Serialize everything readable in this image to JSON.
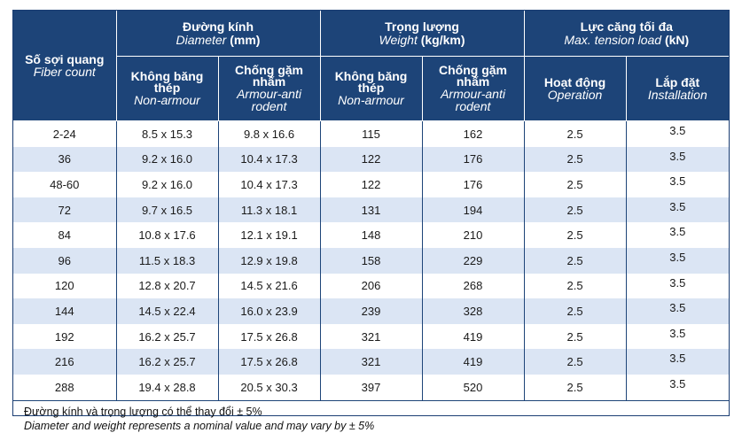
{
  "headers": {
    "fiber_count": {
      "vi": "Số sợi quang",
      "en": "Fiber count"
    },
    "diameter": {
      "vi": "Đường kính",
      "en": "Diameter",
      "unit": "(mm)"
    },
    "weight": {
      "vi": "Trọng lượng",
      "en": "Weight",
      "unit": "(kg/km)"
    },
    "tension": {
      "vi": "Lực căng tối đa",
      "en": "Max. tension load",
      "unit": "(kN)"
    },
    "non_armour": {
      "vi": "Không băng thép",
      "en": "Non-armour"
    },
    "armour": {
      "vi": "Chống gặm nhấm",
      "en": "Armour-anti rodent"
    },
    "operation": {
      "vi": "Hoạt động",
      "en": "Operation"
    },
    "installation": {
      "vi": "Lắp đặt",
      "en": "Installation"
    }
  },
  "rows": [
    [
      "2-24",
      "8.5 x 15.3",
      "9.8 x 16.6",
      "115",
      "162",
      "2.5",
      "3.5"
    ],
    [
      "36",
      "9.2 x 16.0",
      "10.4 x 17.3",
      "122",
      "176",
      "2.5",
      "3.5"
    ],
    [
      "48-60",
      "9.2 x 16.0",
      "10.4 x 17.3",
      "122",
      "176",
      "2.5",
      "3.5"
    ],
    [
      "72",
      "9.7 x 16.5",
      "11.3 x 18.1",
      "131",
      "194",
      "2.5",
      "3.5"
    ],
    [
      "84",
      "10.8 x 17.6",
      "12.1 x 19.1",
      "148",
      "210",
      "2.5",
      "3.5"
    ],
    [
      "96",
      "11.5 x 18.3",
      "12.9 x 19.8",
      "158",
      "229",
      "2.5",
      "3.5"
    ],
    [
      "120",
      "12.8 x 20.7",
      "14.5 x 21.6",
      "206",
      "268",
      "2.5",
      "3.5"
    ],
    [
      "144",
      "14.5 x 22.4",
      "16.0 x 23.9",
      "239",
      "328",
      "2.5",
      "3.5"
    ],
    [
      "192",
      "16.2 x 25.7",
      "17.5 x 26.8",
      "321",
      "419",
      "2.5",
      "3.5"
    ],
    [
      "216",
      "16.2 x 25.7",
      "17.5 x 26.8",
      "321",
      "419",
      "2.5",
      "3.5"
    ],
    [
      "288",
      "19.4 x 28.8",
      "20.5 x 30.3",
      "397",
      "520",
      "2.5",
      "3.5"
    ]
  ],
  "note": {
    "vi": "Đường kính và trọng lượng có thể thay đổi ± 5%",
    "en": "Diameter and weight represents a nominal value and may vary by ± 5%"
  },
  "colors": {
    "header_bg": "#1d4478",
    "alt_row": "#dbe5f4"
  }
}
